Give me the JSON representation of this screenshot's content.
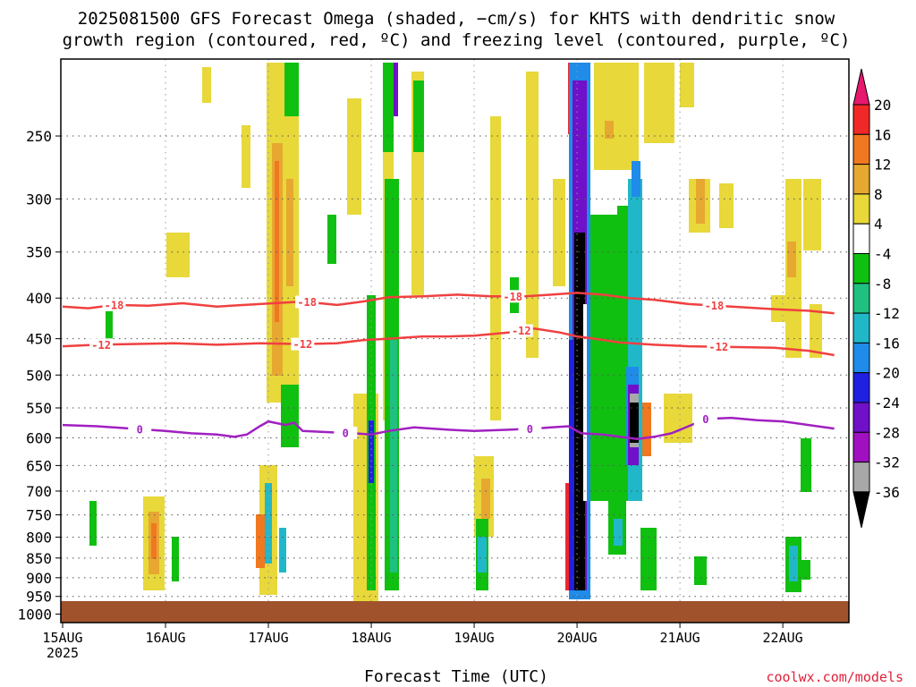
{
  "title_line1": "2025081500 GFS Forecast Omega (shaded, −cm/s) for KHTS with dendritic snow",
  "title_line2": "growth region (contoured, red, ºC) and freezing level (contoured, purple, ºC)",
  "credit": "coolwx.com/models",
  "colors": {
    "ground": "#a0522d",
    "dgz_contour": "#f04040",
    "freezing_contour": "#a020c0",
    "grid": "#555555"
  },
  "chart_data": {
    "type": "heatmap",
    "xlabel": "Forecast Time (UTC)",
    "ylabel": "",
    "x_range_hours": [
      0,
      180
    ],
    "y_range_hpa": [
      200,
      1025
    ],
    "y_ticks": [
      {
        "value": 250,
        "label": "250"
      },
      {
        "value": 300,
        "label": "300"
      },
      {
        "value": 350,
        "label": "350"
      },
      {
        "value": 400,
        "label": "400"
      },
      {
        "value": 450,
        "label": "450"
      },
      {
        "value": 500,
        "label": "500"
      },
      {
        "value": 550,
        "label": "550"
      },
      {
        "value": 600,
        "label": "600"
      },
      {
        "value": 650,
        "label": "650"
      },
      {
        "value": 700,
        "label": "700"
      },
      {
        "value": 750,
        "label": "750"
      },
      {
        "value": 800,
        "label": "800"
      },
      {
        "value": 850,
        "label": "850"
      },
      {
        "value": 900,
        "label": "900"
      },
      {
        "value": 950,
        "label": "950"
      },
      {
        "value": 1000,
        "label": "1000"
      }
    ],
    "x_ticks": [
      {
        "hour": 0,
        "label": "15AUG",
        "sub": "2025"
      },
      {
        "hour": 24,
        "label": "16AUG"
      },
      {
        "hour": 48,
        "label": "17AUG"
      },
      {
        "hour": 72,
        "label": "18AUG"
      },
      {
        "hour": 96,
        "label": "19AUG"
      },
      {
        "hour": 120,
        "label": "20AUG"
      },
      {
        "hour": 144,
        "label": "21AUG"
      },
      {
        "hour": 168,
        "label": "22AUG"
      }
    ],
    "colorbar": {
      "levels": [
        {
          "label": "20",
          "color": "#e8186e"
        },
        {
          "label": "16",
          "color": "#f02828"
        },
        {
          "label": "12",
          "color": "#f07820"
        },
        {
          "label": "8",
          "color": "#e6a830"
        },
        {
          "label": "4",
          "color": "#e8d83a"
        },
        {
          "label": "-4",
          "color": "#ffffff"
        },
        {
          "label": "-8",
          "color": "#10c010"
        },
        {
          "label": "-12",
          "color": "#20c080"
        },
        {
          "label": "-16",
          "color": "#20b8c8"
        },
        {
          "label": "-20",
          "color": "#1e8ce8"
        },
        {
          "label": "-24",
          "color": "#2020e0"
        },
        {
          "label": "-28",
          "color": "#7010c8"
        },
        {
          "label": "-32",
          "color": "#a010c0"
        },
        {
          "label": "-36",
          "color": "#a8a8a8"
        }
      ],
      "bottom_color": "#000000",
      "top_color": "#e8186e"
    },
    "contours": [
      {
        "name": "-18",
        "color": "#f04040",
        "points": [
          [
            0,
            410
          ],
          [
            6,
            412
          ],
          [
            12,
            408
          ],
          [
            20,
            409
          ],
          [
            28,
            406
          ],
          [
            36,
            410
          ],
          [
            46,
            407
          ],
          [
            56,
            404
          ],
          [
            64,
            408
          ],
          [
            70,
            404
          ],
          [
            76,
            399
          ],
          [
            84,
            398
          ],
          [
            92,
            396
          ],
          [
            100,
            398
          ],
          [
            108,
            398
          ],
          [
            114,
            396
          ],
          [
            120,
            394
          ],
          [
            126,
            396
          ],
          [
            132,
            400
          ],
          [
            138,
            402
          ],
          [
            146,
            407
          ],
          [
            156,
            410
          ],
          [
            166,
            413
          ],
          [
            174,
            415
          ],
          [
            180,
            418
          ]
        ],
        "labels": [
          [
            12,
            "-18"
          ],
          [
            57,
            "-18"
          ],
          [
            105,
            "-18"
          ],
          [
            152,
            "-18"
          ]
        ]
      },
      {
        "name": "-12",
        "color": "#f04040",
        "points": [
          [
            0,
            460
          ],
          [
            8,
            458
          ],
          [
            16,
            457
          ],
          [
            26,
            456
          ],
          [
            36,
            458
          ],
          [
            46,
            456
          ],
          [
            56,
            457
          ],
          [
            64,
            456
          ],
          [
            70,
            452
          ],
          [
            76,
            450
          ],
          [
            84,
            447
          ],
          [
            90,
            447
          ],
          [
            96,
            446
          ],
          [
            104,
            442
          ],
          [
            110,
            437
          ],
          [
            116,
            442
          ],
          [
            120,
            447
          ],
          [
            124,
            450
          ],
          [
            130,
            455
          ],
          [
            138,
            458
          ],
          [
            146,
            460
          ],
          [
            156,
            461
          ],
          [
            166,
            462
          ],
          [
            174,
            466
          ],
          [
            180,
            472
          ]
        ],
        "labels": [
          [
            9,
            "-12"
          ],
          [
            56,
            "-12"
          ],
          [
            107,
            "-12"
          ],
          [
            153,
            "-12"
          ]
        ]
      },
      {
        "name": "0",
        "color": "#a020c0",
        "points": [
          [
            0,
            578
          ],
          [
            8,
            580
          ],
          [
            16,
            584
          ],
          [
            24,
            588
          ],
          [
            30,
            592
          ],
          [
            36,
            594
          ],
          [
            40,
            598
          ],
          [
            43,
            594
          ],
          [
            46,
            580
          ],
          [
            48,
            572
          ],
          [
            52,
            578
          ],
          [
            54,
            574
          ],
          [
            56,
            588
          ],
          [
            62,
            590
          ],
          [
            68,
            592
          ],
          [
            72,
            594
          ],
          [
            76,
            588
          ],
          [
            82,
            582
          ],
          [
            90,
            586
          ],
          [
            96,
            588
          ],
          [
            104,
            586
          ],
          [
            110,
            584
          ],
          [
            114,
            582
          ],
          [
            118,
            580
          ],
          [
            121,
            592
          ],
          [
            126,
            594
          ],
          [
            130,
            598
          ],
          [
            134,
            602
          ],
          [
            138,
            598
          ],
          [
            142,
            592
          ],
          [
            146,
            580
          ],
          [
            150,
            568
          ],
          [
            156,
            566
          ],
          [
            162,
            570
          ],
          [
            168,
            572
          ],
          [
            174,
            578
          ],
          [
            180,
            584
          ]
        ],
        "labels": [
          [
            18,
            "0"
          ],
          [
            66,
            "0"
          ],
          [
            109,
            "0"
          ],
          [
            150,
            "0"
          ]
        ]
      }
    ]
  }
}
